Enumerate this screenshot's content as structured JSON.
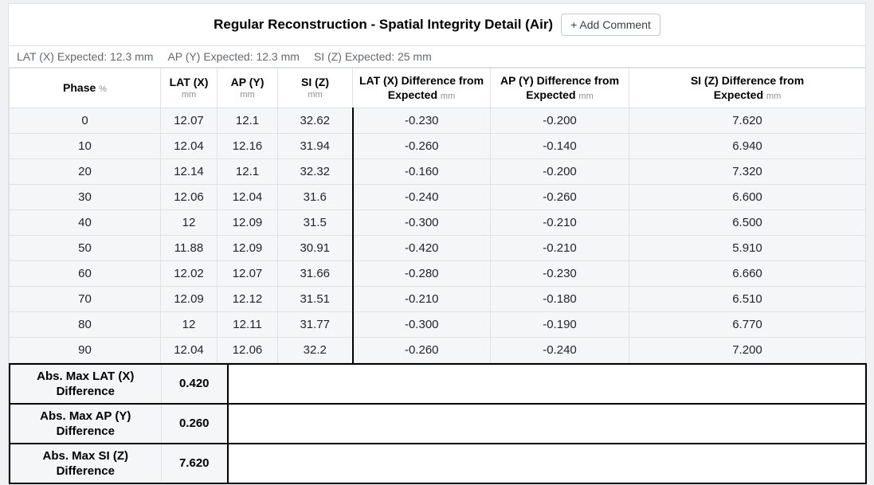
{
  "title": "Regular Reconstruction - Spatial Integrity Detail (Air)",
  "add_comment_button": "+ Add Comment",
  "expected": {
    "lat": "LAT (X) Expected: 12.3 mm",
    "ap": "AP (Y) Expected: 12.3 mm",
    "si": "SI (Z) Expected: 25 mm"
  },
  "table": {
    "columns": [
      {
        "id": "phase",
        "line1": "Phase",
        "unit": "%",
        "unit_position": "inline"
      },
      {
        "id": "lat",
        "line1": "LAT (X)",
        "unit": "mm",
        "unit_position": "below"
      },
      {
        "id": "ap",
        "line1": "AP (Y)",
        "unit": "mm",
        "unit_position": "below"
      },
      {
        "id": "si",
        "line1": "SI (Z)",
        "unit": "mm",
        "unit_position": "below"
      },
      {
        "id": "lat-diff",
        "line1": "LAT (X) Difference from",
        "line2": "Expected",
        "unit": "mm",
        "unit_position": "after-line2"
      },
      {
        "id": "ap-diff",
        "line1": "AP (Y) Difference from",
        "line2": "Expected",
        "unit": "mm",
        "unit_position": "after-line2"
      },
      {
        "id": "si-diff",
        "line1": "SI (Z) Difference from",
        "line2": "Expected",
        "unit": "mm",
        "unit_position": "after-line2"
      }
    ],
    "rows": [
      [
        "0",
        "12.07",
        "12.1",
        "32.62",
        "-0.230",
        "-0.200",
        "7.620"
      ],
      [
        "10",
        "12.04",
        "12.16",
        "31.94",
        "-0.260",
        "-0.140",
        "6.940"
      ],
      [
        "20",
        "12.14",
        "12.1",
        "32.32",
        "-0.160",
        "-0.200",
        "7.320"
      ],
      [
        "30",
        "12.06",
        "12.04",
        "31.6",
        "-0.240",
        "-0.260",
        "6.600"
      ],
      [
        "40",
        "12",
        "12.09",
        "31.5",
        "-0.300",
        "-0.210",
        "6.500"
      ],
      [
        "50",
        "11.88",
        "12.09",
        "30.91",
        "-0.420",
        "-0.210",
        "5.910"
      ],
      [
        "60",
        "12.02",
        "12.07",
        "31.66",
        "-0.280",
        "-0.230",
        "6.660"
      ],
      [
        "70",
        "12.09",
        "12.12",
        "31.51",
        "-0.210",
        "-0.180",
        "6.510"
      ],
      [
        "80",
        "12",
        "12.11",
        "31.77",
        "-0.300",
        "-0.190",
        "6.770"
      ],
      [
        "90",
        "12.04",
        "12.06",
        "32.2",
        "-0.260",
        "-0.240",
        "7.200"
      ]
    ]
  },
  "summary": [
    {
      "id": "lat-max",
      "line1": "Abs. Max LAT (X)",
      "line2": "Difference",
      "value": "0.420"
    },
    {
      "id": "ap-max",
      "line1": "Abs. Max AP (Y)",
      "line2": "Difference",
      "value": "0.260"
    },
    {
      "id": "si-max",
      "line1": "Abs. Max SI (Z)",
      "line2": "Difference",
      "value": "7.620"
    }
  ],
  "colors": {
    "page_background": "#f0f1f2",
    "card_background": "#ffffff",
    "row_background": "#f5f6f7",
    "light_border": "#dee2e6",
    "heavy_border": "#000000",
    "muted_text": "#65696d",
    "unit_text": "#8d9093",
    "body_text": "#212529"
  }
}
